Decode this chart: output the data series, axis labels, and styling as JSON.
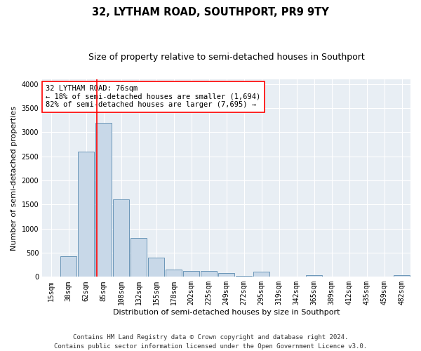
{
  "title": "32, LYTHAM ROAD, SOUTHPORT, PR9 9TY",
  "subtitle": "Size of property relative to semi-detached houses in Southport",
  "xlabel": "Distribution of semi-detached houses by size in Southport",
  "ylabel": "Number of semi-detached properties",
  "footer_line1": "Contains HM Land Registry data © Crown copyright and database right 2024.",
  "footer_line2": "Contains public sector information licensed under the Open Government Licence v3.0.",
  "bin_labels": [
    "15sqm",
    "38sqm",
    "62sqm",
    "85sqm",
    "108sqm",
    "132sqm",
    "155sqm",
    "178sqm",
    "202sqm",
    "225sqm",
    "249sqm",
    "272sqm",
    "295sqm",
    "319sqm",
    "342sqm",
    "365sqm",
    "389sqm",
    "412sqm",
    "435sqm",
    "459sqm",
    "482sqm"
  ],
  "bar_values": [
    10,
    430,
    2600,
    3200,
    1600,
    800,
    400,
    150,
    120,
    120,
    80,
    20,
    100,
    5,
    5,
    30,
    2,
    2,
    0,
    0,
    30
  ],
  "bar_color": "#c8d8e8",
  "bar_edge_color": "#5a8ab0",
  "background_color": "#e8eef4",
  "red_line_x": 2.61,
  "annotation_title": "32 LYTHAM ROAD: 76sqm",
  "annotation_line1": "← 18% of semi-detached houses are smaller (1,694)",
  "annotation_line2": "82% of semi-detached houses are larger (7,695) →",
  "ylim": [
    0,
    4100
  ],
  "yticks": [
    0,
    500,
    1000,
    1500,
    2000,
    2500,
    3000,
    3500,
    4000
  ],
  "title_fontsize": 10.5,
  "subtitle_fontsize": 9,
  "axis_label_fontsize": 8,
  "tick_fontsize": 7,
  "annotation_fontsize": 7.5,
  "footer_fontsize": 6.5
}
